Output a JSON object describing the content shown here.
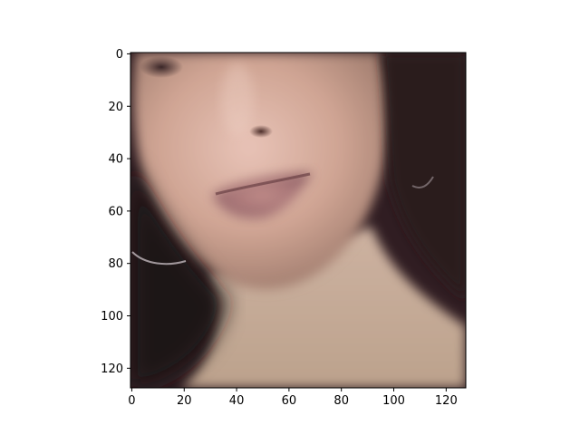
{
  "image": {
    "subject": "face-crop",
    "rows": 128,
    "cols": 128
  },
  "chart_data": {
    "type": "heatmap",
    "title": "",
    "xlabel": "",
    "ylabel": "",
    "xlim": [
      -0.5,
      127.5
    ],
    "ylim": [
      127.5,
      -0.5
    ],
    "y_inverted": true,
    "grid": false,
    "x_ticks": [
      0,
      20,
      40,
      60,
      80,
      100,
      120
    ],
    "y_ticks": [
      0,
      20,
      40,
      60,
      80,
      100,
      120
    ],
    "x_tick_labels": [
      "0",
      "20",
      "40",
      "60",
      "80",
      "100",
      "120"
    ],
    "y_tick_labels": [
      "0",
      "20",
      "40",
      "60",
      "80",
      "100",
      "120"
    ]
  }
}
